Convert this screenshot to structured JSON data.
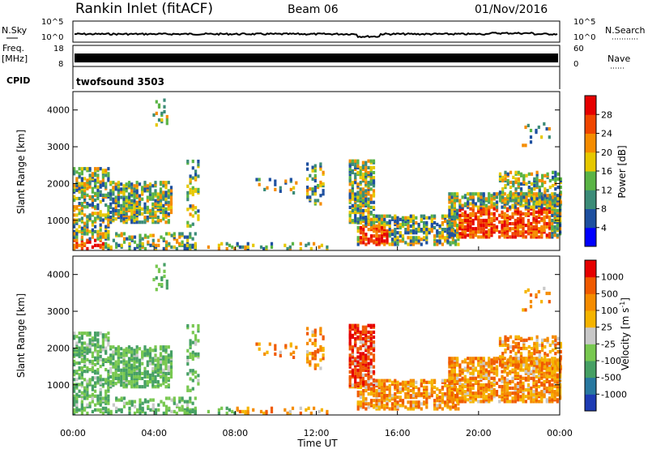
{
  "header": {
    "station": "Rankin Inlet (fitACF)",
    "beam": "Beam 06",
    "date": "01/Nov/2016"
  },
  "left_labels": {
    "nsky": "N.Sky",
    "freq": "Freq.",
    "mhz": "[MHz]",
    "cpid": "CPID"
  },
  "right_labels": {
    "nsearch": "N.Search",
    "nave": "Nave"
  },
  "cpid_value": "twofsound 3503",
  "chart_data": [
    {
      "type": "line",
      "panel": "noise",
      "series": [],
      "y_ticks_left": [
        "10^5",
        "10^0"
      ],
      "y_ticks_right": [
        "10^5",
        "10^0"
      ],
      "note": ""
    },
    {
      "type": "line",
      "panel": "frequency / nave",
      "y_ticks_left": [
        "18",
        "8"
      ],
      "y_ticks_right": [
        "60",
        "0"
      ]
    },
    {
      "type": "heatmap",
      "panel": "power",
      "ylabel": "Slant Range [km]",
      "ylim": [
        180,
        4500
      ],
      "y_ticks": [
        1000,
        2000,
        3000,
        4000
      ],
      "colorbar": {
        "label": "Power [dB]",
        "ticks": [
          "4",
          "8",
          "12",
          "16",
          "20",
          "24",
          "28"
        ],
        "colors": [
          "#0000ff",
          "#1e50a0",
          "#3c8c78",
          "#5ab446",
          "#e6c800",
          "#f58c00",
          "#f04600",
          "#e60000"
        ]
      }
    },
    {
      "type": "heatmap",
      "panel": "velocity",
      "ylabel": "Slant Range [km]",
      "xlabel": "Time UT",
      "ylim": [
        180,
        4500
      ],
      "y_ticks": [
        1000,
        2000,
        3000,
        4000
      ],
      "x_ticks": [
        "00:00",
        "04:00",
        "08:00",
        "12:00",
        "16:00",
        "20:00",
        "00:00"
      ],
      "colorbar": {
        "label": "Velocity [m s",
        "label_sup": "-1",
        "label_end": "]",
        "ticks": [
          "1000",
          "500",
          "100",
          "25",
          "-25",
          "-100",
          "-500",
          "-1000"
        ],
        "colors": [
          "#1e3cb4",
          "#2878a0",
          "#46a064",
          "#78c850",
          "#c8c8c8",
          "#f5b400",
          "#f58c00",
          "#f05a00",
          "#e60000"
        ]
      }
    }
  ]
}
